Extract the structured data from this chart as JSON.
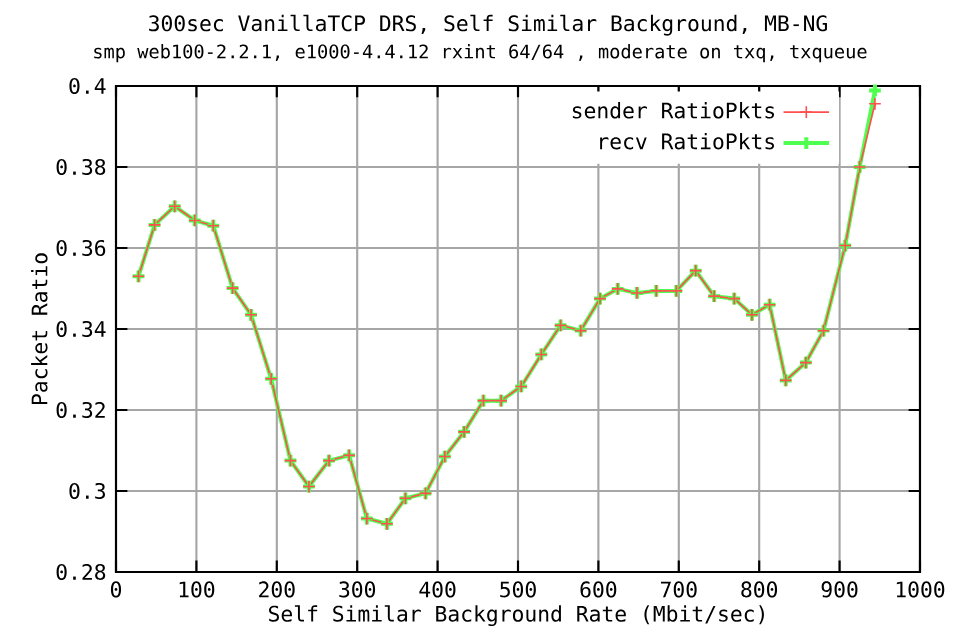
{
  "chart_data": {
    "type": "line",
    "title": "300sec VanillaTCP DRS, Self Similar Background, MB-NG",
    "subtitle": "smp web100-2.2.1, e1000-4.4.12 rxint 64/64 , moderate on txq, txqueue",
    "xlabel": "Self Similar Background Rate (Mbit/sec)",
    "ylabel": "Packet Ratio",
    "x": [
      28,
      48,
      73,
      98,
      121,
      145,
      168,
      193,
      217,
      240,
      265,
      290,
      312,
      337,
      360,
      385,
      409,
      433,
      457,
      479,
      504,
      529,
      553,
      578,
      602,
      624,
      648,
      672,
      697,
      721,
      744,
      769,
      791,
      813,
      833,
      858,
      880,
      907,
      925,
      944
    ],
    "series": [
      {
        "name": "sender RatioPkts",
        "color": "#ff4f4f",
        "values": [
          0.353,
          0.3657,
          0.3703,
          0.3668,
          0.3655,
          0.3501,
          0.3435,
          0.3277,
          0.3075,
          0.3011,
          0.3075,
          0.3088,
          0.2932,
          0.2919,
          0.2982,
          0.2994,
          0.3085,
          0.3146,
          0.3223,
          0.3223,
          0.3258,
          0.3337,
          0.3409,
          0.3396,
          0.3475,
          0.3499,
          0.3489,
          0.3494,
          0.3494,
          0.3544,
          0.3481,
          0.3475,
          0.3435,
          0.346,
          0.3273,
          0.3317,
          0.3396,
          0.3606,
          0.38,
          0.3956
        ]
      },
      {
        "name": "recv RatioPkts",
        "color": "#4fff4f",
        "values": [
          0.353,
          0.3657,
          0.3703,
          0.3668,
          0.3655,
          0.3501,
          0.3435,
          0.3277,
          0.3075,
          0.3011,
          0.3075,
          0.3088,
          0.2932,
          0.2919,
          0.2982,
          0.2994,
          0.3085,
          0.3146,
          0.3223,
          0.3223,
          0.3258,
          0.3337,
          0.3409,
          0.3396,
          0.3475,
          0.3499,
          0.3489,
          0.3494,
          0.3494,
          0.3544,
          0.3481,
          0.3475,
          0.3435,
          0.346,
          0.3273,
          0.3317,
          0.3396,
          0.3606,
          0.38,
          0.3989
        ]
      }
    ],
    "xlim": [
      0,
      1000
    ],
    "xticks": [
      0,
      100,
      200,
      300,
      400,
      500,
      600,
      700,
      800,
      900,
      1000
    ],
    "ylim": [
      0.28,
      0.4
    ],
    "yticks": [
      0.28,
      0.3,
      0.32,
      0.34,
      0.36,
      0.38,
      0.4
    ],
    "grid": true,
    "legend": "top right",
    "marker": "cross",
    "line_style": "solid"
  }
}
